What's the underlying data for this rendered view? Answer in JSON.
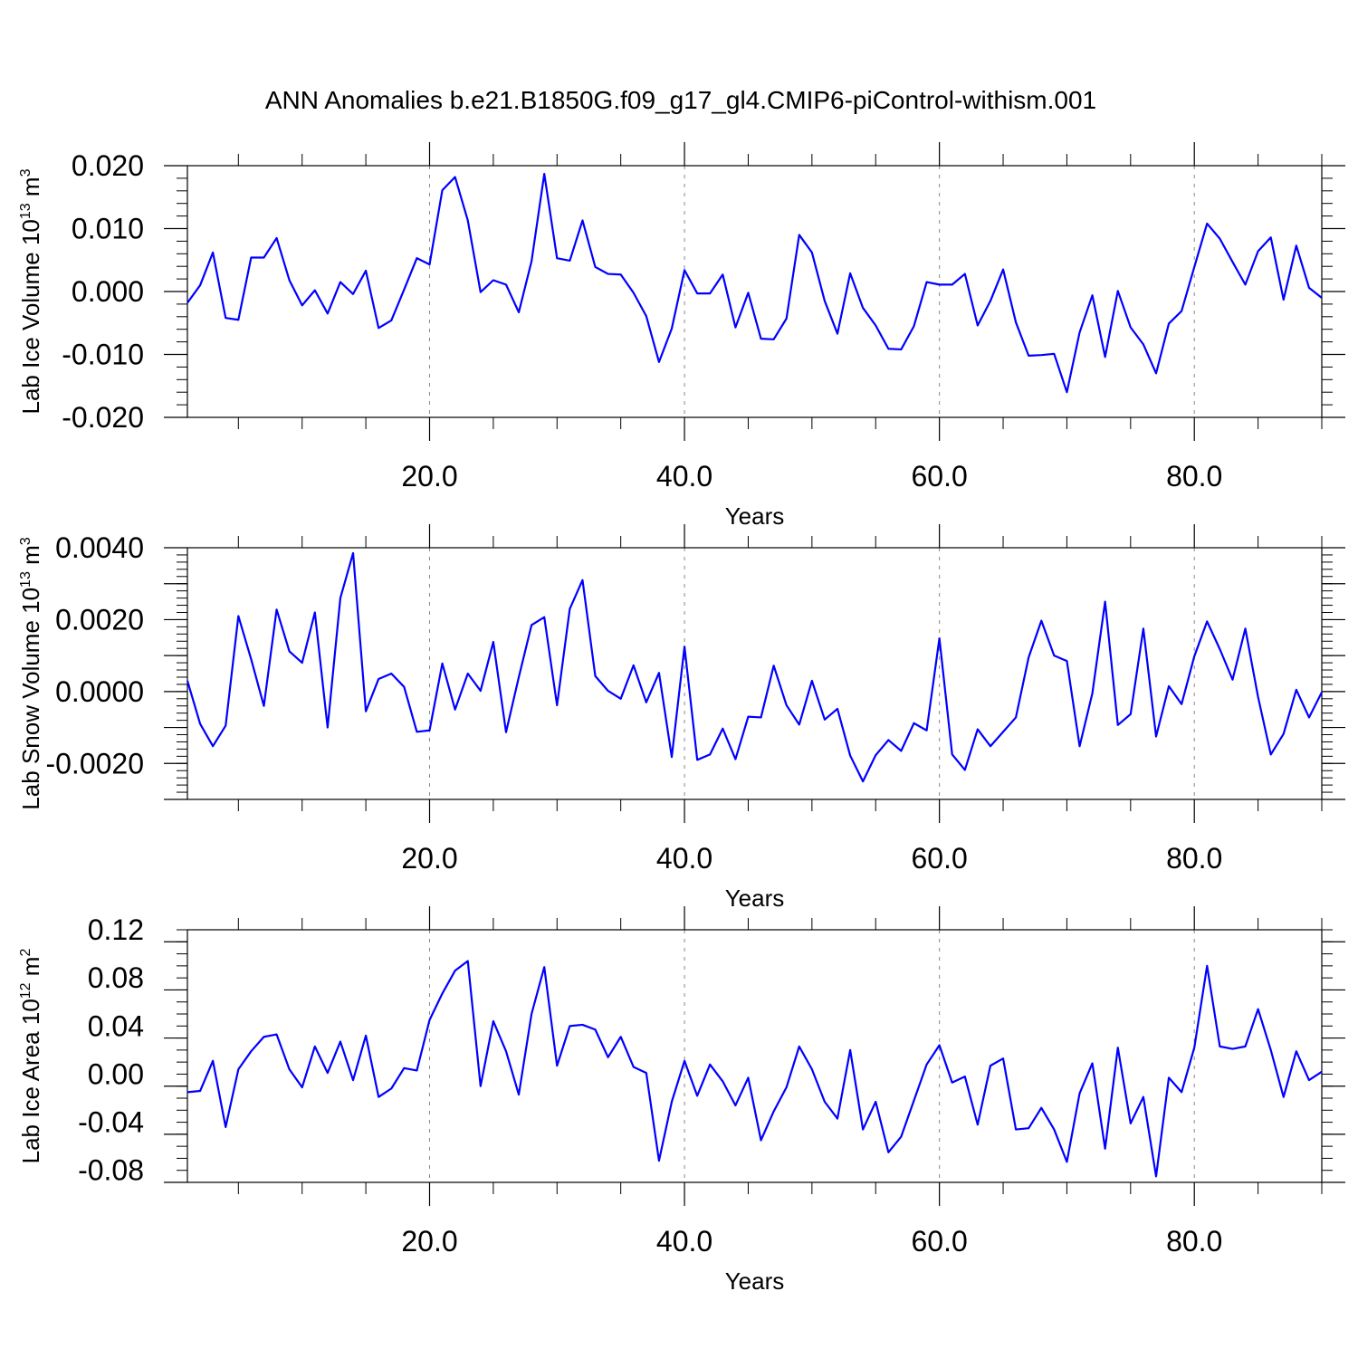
{
  "title": "ANN Anomalies b.e21.B1850G.f09_g17_gl4.CMIP6-piControl-withism.001",
  "chart_data": [
    {
      "type": "line",
      "xlabel": "Years",
      "ylabel": {
        "text": "Lab Ice Volume 10",
        "sup": "13",
        "unit": " m",
        "unit_sup": "3"
      },
      "xlim": [
        1,
        90
      ],
      "ylim": [
        -0.02,
        0.02
      ],
      "xticks": [
        "20.0",
        "40.0",
        "60.0",
        "80.0"
      ],
      "yticks": [
        "-0.020",
        "-0.010",
        "0.000",
        "0.010",
        "0.020"
      ],
      "ytick_values": [
        -0.02,
        -0.01,
        0.0,
        0.01,
        0.02
      ],
      "ymajor_step": 0.01,
      "yminor_step": 0.002,
      "grid": "dashed vertical at x ticks",
      "series": [
        {
          "color": "#0000ff",
          "x_start": 1,
          "x_step": 1,
          "values": [
            -0.0018,
            0.001,
            0.0062,
            -0.0042,
            -0.0045,
            0.0054,
            0.0054,
            0.0085,
            0.0018,
            -0.0022,
            0.0002,
            -0.0035,
            0.0015,
            -0.0004,
            0.0033,
            -0.0058,
            -0.0046,
            0.0003,
            0.0053,
            0.0043,
            0.0161,
            0.0182,
            0.0113,
            -0.0001,
            0.0018,
            0.0011,
            -0.0033,
            0.0048,
            0.0187,
            0.0053,
            0.0049,
            0.0113,
            0.0039,
            0.0028,
            0.0027,
            -0.0002,
            -0.0039,
            -0.0112,
            -0.0059,
            0.0034,
            -0.0003,
            -0.0003,
            0.0027,
            -0.0057,
            -0.0002,
            -0.0075,
            -0.0076,
            -0.0043,
            0.009,
            0.0062,
            -0.0015,
            -0.0067,
            0.0029,
            -0.0026,
            -0.0054,
            -0.0091,
            -0.0092,
            -0.0055,
            0.0015,
            0.0011,
            0.0011,
            0.0028,
            -0.0054,
            -0.0015,
            0.0035,
            -0.0049,
            -0.0102,
            -0.0101,
            -0.0099,
            -0.016,
            -0.0065,
            -0.0006,
            -0.0104,
            0.0001,
            -0.0057,
            -0.0084,
            -0.013,
            -0.0051,
            -0.0031,
            0.0039,
            0.0108,
            0.0084,
            0.0047,
            0.0011,
            0.0064,
            0.0086,
            -0.0013,
            0.0073,
            0.0006,
            -0.001
          ]
        }
      ]
    },
    {
      "type": "line",
      "xlabel": "Years",
      "ylabel": {
        "text": "Lab Snow Volume 10",
        "sup": "13",
        "unit": " m",
        "unit_sup": "3"
      },
      "xlim": [
        1,
        90
      ],
      "ylim": [
        -0.003,
        0.004
      ],
      "xticks": [
        "20.0",
        "40.0",
        "60.0",
        "80.0"
      ],
      "yticks": [
        "-0.0020",
        "0.0000",
        "0.0020",
        "0.0040"
      ],
      "ytick_values": [
        -0.002,
        0.0,
        0.002,
        0.004
      ],
      "ymajor_step": 0.001,
      "yminor_step": 0.0002,
      "grid": "dashed vertical at x ticks",
      "series": [
        {
          "color": "#0000ff",
          "x_start": 1,
          "x_step": 1,
          "values": [
            0.0003,
            -0.0009,
            -0.00152,
            -0.00095,
            0.0021,
            0.0009,
            -0.0004,
            0.00228,
            0.00112,
            0.0008,
            0.0022,
            -0.001,
            0.0026,
            0.00385,
            -0.00055,
            0.00035,
            0.0005,
            0.00013,
            -0.00112,
            -0.00108,
            0.00078,
            -0.0005,
            0.0005,
            2e-05,
            0.00138,
            -0.00113,
            0.0004,
            0.00185,
            0.00207,
            -0.00038,
            0.0023,
            0.0031,
            0.00043,
            2e-05,
            -0.0002,
            0.00073,
            -0.0003,
            0.00052,
            -0.00182,
            0.00125,
            -0.0019,
            -0.00175,
            -0.00103,
            -0.00188,
            -0.0007,
            -0.00072,
            0.00072,
            -0.00038,
            -0.00092,
            0.0003,
            -0.00078,
            -0.00048,
            -0.00178,
            -0.0025,
            -0.00177,
            -0.00135,
            -0.00165,
            -0.00088,
            -0.00108,
            0.00148,
            -0.00175,
            -0.00218,
            -0.00105,
            -0.00152,
            -0.00112,
            -0.00072,
            0.00095,
            0.00197,
            0.001,
            0.00085,
            -0.00152,
            -5e-05,
            0.0025,
            -0.00093,
            -0.00063,
            0.00175,
            -0.00125,
            0.00015,
            -0.00035,
            0.00098,
            0.00195,
            0.00118,
            0.00033,
            0.00175,
            -0.00015,
            -0.00175,
            -0.00118,
            5e-05,
            -0.00072,
            -2e-05
          ]
        }
      ]
    },
    {
      "type": "line",
      "xlabel": "Years",
      "ylabel": {
        "text": "Lab Ice Area 10",
        "sup": "12",
        "unit": " m",
        "unit_sup": "2"
      },
      "xlim": [
        1,
        90
      ],
      "ylim": [
        -0.09,
        0.12
      ],
      "xticks": [
        "20.0",
        "40.0",
        "60.0",
        "80.0"
      ],
      "yticks": [
        "-0.08",
        "-0.04",
        "0.00",
        "0.04",
        "0.08",
        "0.12"
      ],
      "ytick_values": [
        -0.08,
        -0.04,
        0.0,
        0.04,
        0.08,
        0.12
      ],
      "ymajor_step": 0.04,
      "yminor_step": 0.01,
      "grid": "dashed vertical at x ticks",
      "series": [
        {
          "color": "#0000ff",
          "x_start": 1,
          "x_step": 1,
          "values": [
            -0.015,
            -0.014,
            0.011,
            -0.044,
            0.004,
            0.019,
            0.031,
            0.033,
            0.004,
            -0.011,
            0.023,
            0.001,
            0.027,
            -0.005,
            0.032,
            -0.019,
            -0.012,
            0.005,
            0.003,
            0.045,
            0.067,
            0.086,
            0.094,
            -0.01,
            0.044,
            0.019,
            -0.017,
            0.05,
            0.089,
            0.007,
            0.04,
            0.041,
            0.037,
            0.014,
            0.031,
            0.006,
            0.001,
            -0.072,
            -0.023,
            0.011,
            -0.018,
            0.008,
            -0.006,
            -0.026,
            -0.003,
            -0.055,
            -0.031,
            -0.011,
            0.023,
            0.004,
            -0.023,
            -0.037,
            0.02,
            -0.046,
            -0.023,
            -0.065,
            -0.052,
            -0.022,
            0.008,
            0.024,
            -0.007,
            -0.002,
            -0.042,
            0.007,
            0.013,
            -0.046,
            -0.045,
            -0.028,
            -0.046,
            -0.073,
            -0.016,
            0.009,
            -0.062,
            0.022,
            -0.041,
            -0.019,
            -0.085,
            -0.003,
            -0.015,
            0.022,
            0.09,
            0.023,
            0.021,
            0.023,
            0.054,
            0.02,
            -0.019,
            0.019,
            -0.005,
            0.002
          ]
        }
      ]
    }
  ]
}
